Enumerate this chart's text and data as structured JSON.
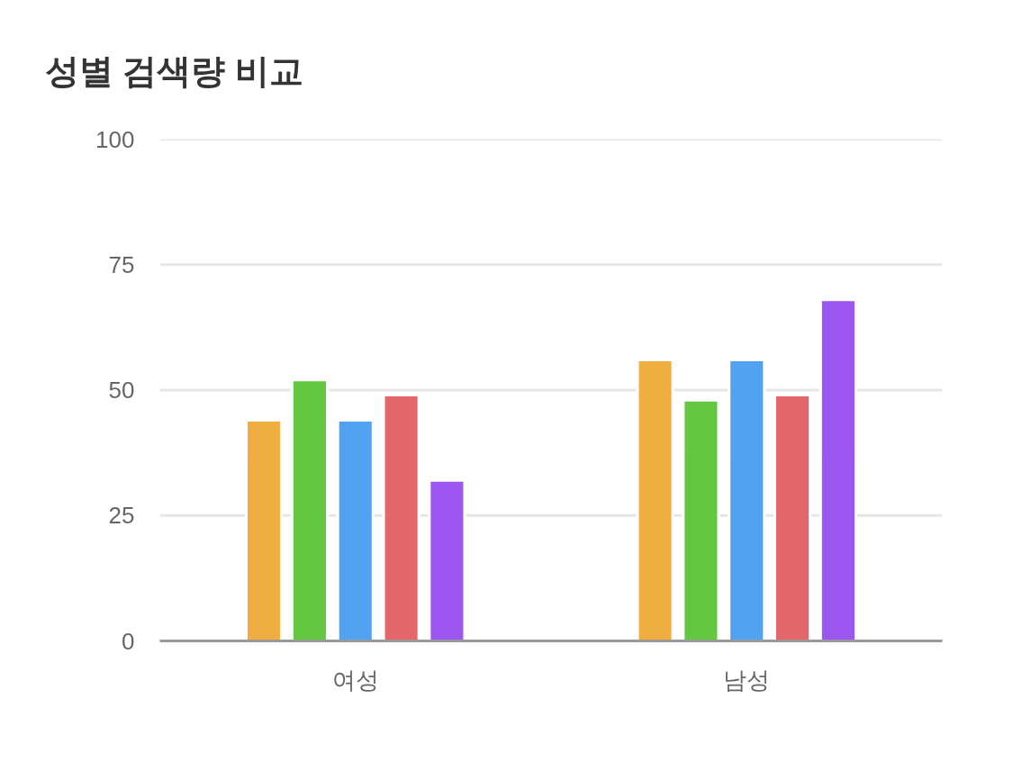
{
  "chart_data": {
    "type": "bar",
    "title": "성별 검색량 비교",
    "categories": [
      "여성",
      "남성"
    ],
    "series": [
      {
        "color": "#f0ae41",
        "values": [
          44,
          56
        ]
      },
      {
        "color": "#63c83f",
        "values": [
          52,
          48
        ]
      },
      {
        "color": "#52a2f2",
        "values": [
          44,
          56
        ]
      },
      {
        "color": "#e2666a",
        "values": [
          49,
          49
        ]
      },
      {
        "color": "#9b57ef",
        "values": [
          32,
          68
        ]
      }
    ],
    "ylim": [
      0,
      100
    ],
    "yticks": [
      0,
      25,
      50,
      75,
      100
    ],
    "grid": "y"
  }
}
